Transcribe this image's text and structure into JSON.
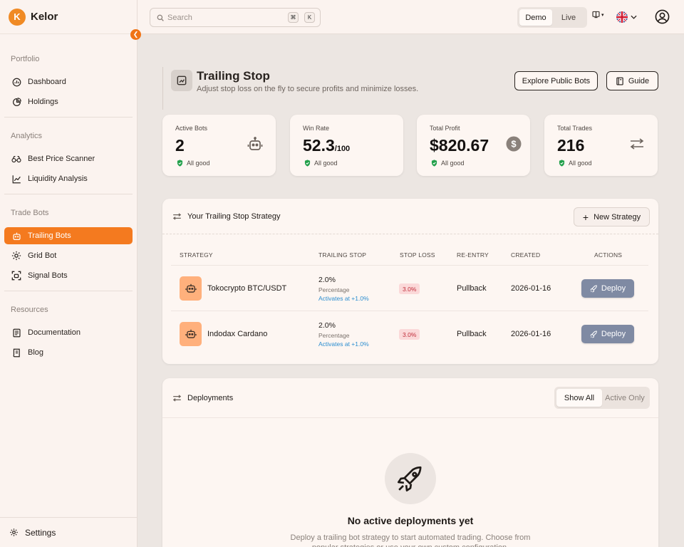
{
  "brand": {
    "name": "Kelor",
    "logo_letter": "K"
  },
  "sidebar": {
    "sections": [
      {
        "title": "Portfolio",
        "items": [
          {
            "label": "Dashboard",
            "icon": "gauge-icon"
          },
          {
            "label": "Holdings",
            "icon": "pie-chart-icon"
          }
        ]
      },
      {
        "title": "Analytics",
        "items": [
          {
            "label": "Best Price Scanner",
            "icon": "binoculars-icon"
          },
          {
            "label": "Liquidity Analysis",
            "icon": "line-chart-icon"
          }
        ]
      },
      {
        "title": "Trade Bots",
        "items": [
          {
            "label": "Trailing Bots",
            "icon": "robot-icon",
            "active": true
          },
          {
            "label": "Grid Bot",
            "icon": "cog-icon"
          },
          {
            "label": "Signal Bots",
            "icon": "signal-icon"
          }
        ]
      },
      {
        "title": "Resources",
        "items": [
          {
            "label": "Documentation",
            "icon": "document-icon"
          },
          {
            "label": "Blog",
            "icon": "book-icon"
          }
        ]
      }
    ],
    "settings_label": "Settings",
    "accent": "#f47a1f"
  },
  "topbar": {
    "search_placeholder": "Search",
    "shortcut_key_1": "⌘",
    "shortcut_key_2": "K",
    "mode": {
      "demo": "Demo",
      "live": "Live",
      "selected": "Demo"
    }
  },
  "page": {
    "title": "Trailing Stop",
    "subtitle": "Adjust stop loss on the fly to secure profits and minimize losses.",
    "explore_label": "Explore Public Bots",
    "guide_label": "Guide"
  },
  "stats": [
    {
      "label": "Active Bots",
      "value": "2",
      "suffix": "",
      "status": "All good",
      "icon": "robot-icon"
    },
    {
      "label": "Win Rate",
      "value": "52.3",
      "suffix": "/100",
      "status": "All good",
      "icon": ""
    },
    {
      "label": "Total Profit",
      "value": "$820.67",
      "suffix": "",
      "status": "All good",
      "icon": "dollar-icon"
    },
    {
      "label": "Total Trades",
      "value": "216",
      "suffix": "",
      "status": "All good",
      "icon": "swap-icon"
    }
  ],
  "strategy_card": {
    "title": "Your Trailing Stop Strategy",
    "new_label": "New Strategy",
    "columns": {
      "strategy": "STRATEGY",
      "trailing": "TRAILING STOP",
      "stop_loss": "STOP LOSS",
      "reentry": "RE-ENTRY",
      "created": "CREATED",
      "actions": "ACTIONS"
    },
    "rows": [
      {
        "name": "Tokocrypto BTC/USDT",
        "trailing": "2.0%",
        "trailing_type": "Percentage",
        "activates": "Activates at +1.0%",
        "stop_loss": "3.0%",
        "reentry": "Pullback",
        "created": "2026-01-16",
        "action": "Deploy"
      },
      {
        "name": "Indodax Cardano",
        "trailing": "2.0%",
        "trailing_type": "Percentage",
        "activates": "Activates at +1.0%",
        "stop_loss": "3.0%",
        "reentry": "Pullback",
        "created": "2026-01-16",
        "action": "Deploy"
      }
    ]
  },
  "deployments": {
    "title": "Deployments",
    "filter_all": "Show All",
    "filter_active": "Active Only",
    "empty_title": "No active deployments yet",
    "empty_desc": "Deploy a trailing bot strategy to start automated trading. Choose from popular strategies or use your own custom configuration."
  }
}
